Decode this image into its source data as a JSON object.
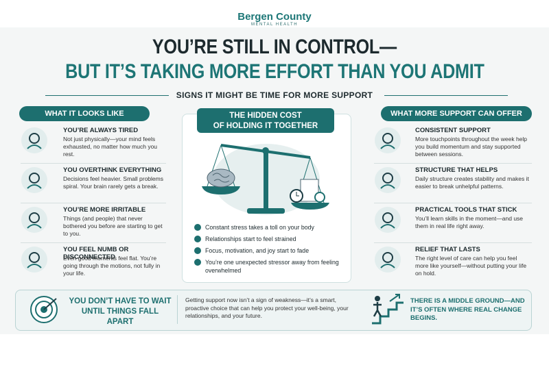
{
  "brand": {
    "name": "Bergen County",
    "tagline": "MENTAL HEALTH"
  },
  "header": {
    "title_line1": "YOU’RE STILL IN CONTROL—",
    "title_line2": "BUT IT’S TAKING MORE EFFORT THAN YOU ADMIT",
    "subtitle": "SIGNS IT MIGHT BE TIME FOR MORE SUPPORT"
  },
  "left": {
    "heading": "WHAT IT LOOKS LIKE",
    "items": [
      {
        "title": "YOU’RE ALWAYS TIRED",
        "text": "Not just physically—your mind feels exhausted, no matter how much you rest."
      },
      {
        "title": "YOU OVERTHINK EVERYTHING",
        "text": "Decisions feel heavier. Small problems spiral. Your brain rarely gets a break."
      },
      {
        "title": "YOU’RE MORE IRRITABLE",
        "text": "Things (and people) that never bothered you before are starting to get to you."
      },
      {
        "title": "YOU FEEL NUMB OR DISCONNECTED",
        "text": "Even good moments feel flat. You’re going through the motions, not fully in your life."
      }
    ]
  },
  "center": {
    "heading_line1": "THE HIDDEN COST",
    "heading_line2": "OF HOLDING IT TOGETHER",
    "bullets": [
      "Constant stress takes a toll on your body",
      "Relationships start to feel strained",
      "Focus, motivation, and joy start to fade",
      "You’re one unexpected stressor away from feeling overwhelmed"
    ]
  },
  "right": {
    "heading": "WHAT MORE SUPPORT CAN OFFER",
    "items": [
      {
        "title": "CONSISTENT SUPPORT",
        "text": "More touchpoints throughout the week help you build momentum and stay supported between sessions."
      },
      {
        "title": "STRUCTURE THAT HELPS",
        "text": "Daily structure creates stability and makes it easier to break unhelpful patterns."
      },
      {
        "title": "PRACTICAL TOOLS THAT STICK",
        "text": "You’ll learn skills in the moment—and use them in real life right away."
      },
      {
        "title": "RELIEF THAT LASTS",
        "text": "The right level of care can help you feel more like yourself—without putting your life on hold."
      }
    ]
  },
  "footer": {
    "left": "YOU DON’T HAVE TO WAIT UNTIL THINGS FALL APART",
    "middle": "Getting support now isn’t a sign of weakness—it’s a smart, proactive choice that can help you protect your well-being, your relationships, and your future.",
    "right": "THERE IS A MIDDLE GROUND—AND IT’S OFTEN WHERE REAL CHANGE BEGINS."
  }
}
